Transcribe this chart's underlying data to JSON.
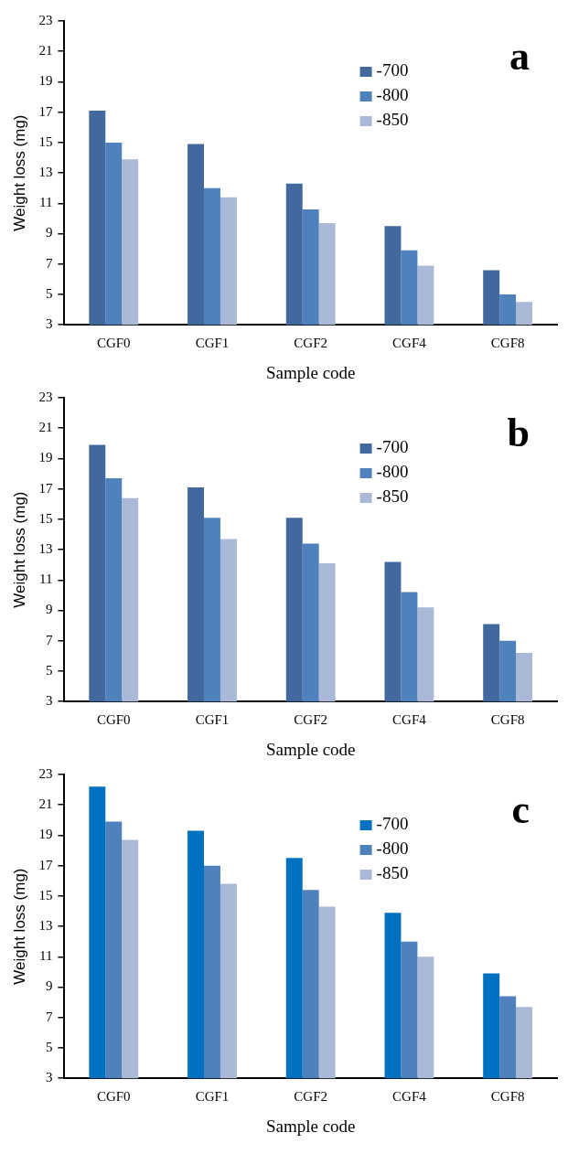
{
  "chart_data": [
    {
      "type": "bar",
      "title": "a",
      "xlabel": "Sample code",
      "ylabel": "Weight loss (mg)",
      "categories": [
        "CGF0",
        "CGF1",
        "CGF2",
        "CGF4",
        "CGF8"
      ],
      "ylim": [
        3,
        23
      ],
      "yticks": [
        3,
        5,
        7,
        9,
        11,
        13,
        15,
        17,
        19,
        21,
        23
      ],
      "grid": false,
      "legend": "top right",
      "series": [
        {
          "name": "-700",
          "color": "#41699e",
          "values": [
            17.1,
            14.9,
            12.3,
            9.5,
            6.6
          ]
        },
        {
          "name": "-800",
          "color": "#4f81bd",
          "values": [
            15.0,
            12.0,
            10.6,
            7.9,
            5.0
          ]
        },
        {
          "name": "-850",
          "color": "#aab9d7",
          "values": [
            13.9,
            11.4,
            9.7,
            6.9,
            4.5
          ]
        }
      ]
    },
    {
      "type": "bar",
      "title": "b",
      "xlabel": "Sample code",
      "ylabel": "Weight loss (mg)",
      "categories": [
        "CGF0",
        "CGF1",
        "CGF2",
        "CGF4",
        "CGF8"
      ],
      "ylim": [
        3,
        23
      ],
      "yticks": [
        3,
        5,
        7,
        9,
        11,
        13,
        15,
        17,
        19,
        21,
        23
      ],
      "grid": false,
      "legend": "top right",
      "series": [
        {
          "name": "-700",
          "color": "#41699e",
          "values": [
            19.9,
            17.1,
            15.1,
            12.2,
            8.1
          ]
        },
        {
          "name": "-800",
          "color": "#4f81bd",
          "values": [
            17.7,
            15.1,
            13.4,
            10.2,
            7.0
          ]
        },
        {
          "name": "-850",
          "color": "#aab9d7",
          "values": [
            16.4,
            13.7,
            12.1,
            9.2,
            6.2
          ]
        }
      ]
    },
    {
      "type": "bar",
      "title": "c",
      "xlabel": "Sample code",
      "ylabel": "Weight loss (mg)",
      "categories": [
        "CGF0",
        "CGF1",
        "CGF2",
        "CGF4",
        "CGF8"
      ],
      "ylim": [
        3,
        23
      ],
      "yticks": [
        3,
        5,
        7,
        9,
        11,
        13,
        15,
        17,
        19,
        21,
        23
      ],
      "grid": false,
      "legend": "top right",
      "series": [
        {
          "name": "-700",
          "color": "#0070c0",
          "values": [
            22.2,
            19.3,
            17.5,
            13.9,
            9.9
          ]
        },
        {
          "name": "-800",
          "color": "#4f81bd",
          "values": [
            19.9,
            17.0,
            15.4,
            12.0,
            8.4
          ]
        },
        {
          "name": "-850",
          "color": "#aab9d7",
          "values": [
            18.7,
            15.8,
            14.3,
            11.0,
            7.7
          ]
        }
      ]
    }
  ]
}
